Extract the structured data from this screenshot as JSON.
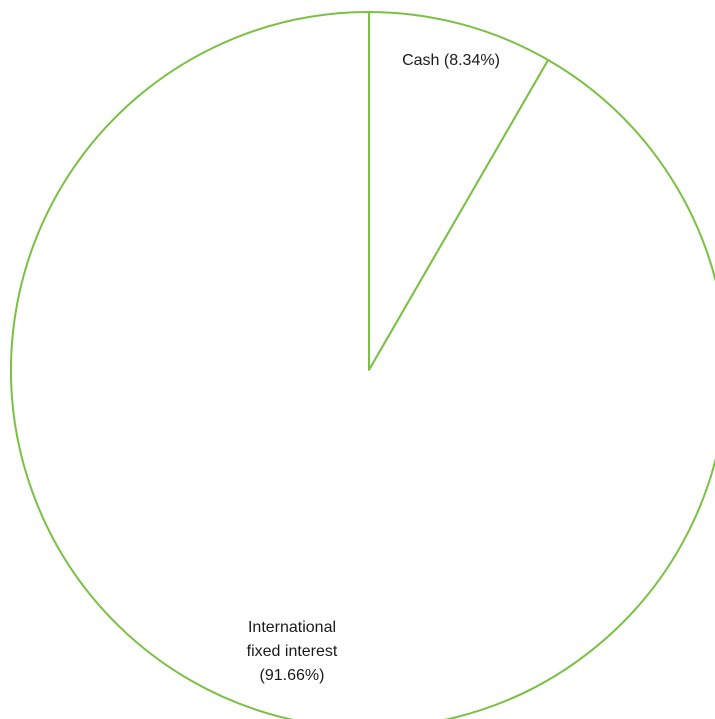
{
  "chart_data": {
    "type": "pie",
    "title": "",
    "slices": [
      {
        "label": "Cash",
        "value": 8.34,
        "display": "Cash (8.34%)",
        "label_lines": [
          "Cash (8.34%)"
        ]
      },
      {
        "label": "International fixed interest",
        "value": 91.66,
        "display": "International fixed interest (91.66%)",
        "label_lines": [
          "International",
          "fixed interest",
          "(91.66%)"
        ]
      }
    ],
    "start_angle": "12 o'clock",
    "direction": "clockwise",
    "fill": "#ffffff",
    "stroke": "#7ac143",
    "legend": "none"
  }
}
